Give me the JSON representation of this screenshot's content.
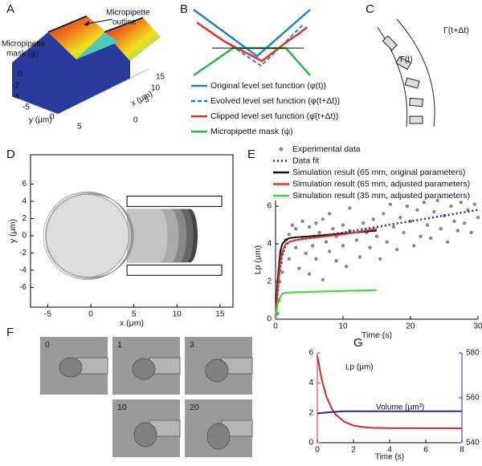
{
  "panels": {
    "A": {
      "label": "A",
      "annotations": [
        "Micropipette",
        "outline",
        "Micropipette",
        "mask (ψ)"
      ],
      "zticks": [
        0,
        -2,
        -4
      ],
      "yticks": [
        -5,
        0,
        5
      ],
      "xticks": [
        0,
        5,
        10,
        15
      ],
      "ylabel": "y (μm)",
      "xlabel": "x (μm)"
    },
    "B": {
      "label": "B",
      "legend": [
        {
          "name": "Original level set function (φ(t))",
          "color": "#2a7fc9",
          "dash": false
        },
        {
          "name": "Evolved level set function (φ(t+Δt))",
          "color": "#2a7fc9",
          "dash": true
        },
        {
          "name": "Clipped level set function (φ̄(t+Δt))",
          "color": "#e8312b",
          "dash": false
        },
        {
          "name": "Micropipette mask (ψ)",
          "color": "#2bb24c",
          "dash": false
        }
      ]
    },
    "C": {
      "label": "C",
      "outer": "Γ(t+Δt)",
      "inner": "Γ(t)"
    },
    "F": {
      "label": "F",
      "frames": [
        0,
        1,
        3,
        10,
        20
      ]
    }
  },
  "chart_data": [
    {
      "type": "diagram",
      "panel": "D",
      "xlabel": "x (μm)",
      "ylabel": "y (μm)",
      "xlim": [
        -7,
        16.5
      ],
      "ylim": [
        -8.3,
        9.4
      ],
      "xticks": [
        -5,
        0,
        5,
        10,
        15
      ],
      "yticks": [
        -6,
        -4,
        -2,
        0,
        2,
        4,
        6
      ]
    },
    {
      "type": "line",
      "panel": "E",
      "xlabel": "Time (s)",
      "ylabel": "Lp (μm)",
      "xlim": [
        0,
        30
      ],
      "ylim": [
        0,
        6.3
      ],
      "xticks": [
        0,
        10,
        20,
        30
      ],
      "yticks": [
        0,
        2,
        4,
        6
      ],
      "series": [
        {
          "name": "Experimental data",
          "color": "#888888",
          "style": "points",
          "x": [
            0.3,
            0.5,
            0.6,
            0.8,
            1,
            1,
            1.5,
            2,
            2,
            2.5,
            3,
            3,
            3.5,
            4,
            4,
            4.5,
            5,
            5,
            5.5,
            6,
            6,
            6.5,
            7,
            7,
            7.5,
            8,
            8,
            8.5,
            9,
            9,
            10,
            10,
            10.5,
            11,
            11,
            12,
            12.5,
            13,
            13.5,
            14,
            14.5,
            15,
            15.5,
            16,
            16.5,
            17,
            17.5,
            18,
            18.5,
            19,
            19.5,
            20,
            20.5,
            21,
            21.5,
            22,
            22.5,
            23,
            23.5,
            24,
            24.5,
            25,
            25.5,
            26,
            26.5,
            27,
            27.5,
            28,
            28.5,
            29,
            29.5,
            30
          ],
          "values": [
            0.3,
            1,
            2,
            3,
            3.5,
            2.5,
            4.2,
            3.2,
            4.5,
            5,
            3.8,
            4.8,
            2.7,
            4.3,
            5.2,
            3.5,
            4.9,
            2.4,
            3.9,
            5.1,
            3.2,
            4.6,
            2.1,
            5.3,
            4.1,
            3.6,
            5.6,
            4.8,
            3.1,
            4.4,
            5,
            3.9,
            2.8,
            4.7,
            5.9,
            4.2,
            3.3,
            5.1,
            4.6,
            3.8,
            5.3,
            4.4,
            3.2,
            5.6,
            4.1,
            6.1,
            4.9,
            3.7,
            5.4,
            4.6,
            6,
            5.2,
            3.9,
            5.8,
            4.4,
            6.2,
            5,
            4.3,
            5.7,
            6.3,
            4.8,
            5.5,
            4.1,
            6,
            5.2,
            4.7,
            6.2,
            5.1,
            5.8,
            4.6,
            6.1,
            5.4
          ]
        },
        {
          "name": "Data fit",
          "color": "#2222cc",
          "style": "dotted",
          "x": [
            0,
            0.5,
            1,
            1.5,
            2,
            3,
            5,
            10,
            15,
            20,
            25,
            30
          ],
          "values": [
            0,
            2.2,
            3.4,
            3.9,
            4.1,
            4.2,
            4.3,
            4.6,
            4.9,
            5.2,
            5.5,
            5.8
          ]
        },
        {
          "name": "Simulation result (65 mm, original parameters)",
          "color": "#111111",
          "style": "solid",
          "x": [
            0,
            0.3,
            0.7,
            1,
            1.5,
            2,
            3,
            5,
            10,
            15
          ],
          "values": [
            0,
            2,
            3.6,
            4,
            4.2,
            4.3,
            4.35,
            4.4,
            4.55,
            4.7
          ]
        },
        {
          "name": "Simulation result (65 mm, adjusted parameters)",
          "color": "#e8312b",
          "style": "solid",
          "x": [
            0,
            0.3,
            0.7,
            1,
            1.5,
            2,
            3,
            5,
            10,
            15
          ],
          "values": [
            0,
            1.5,
            3,
            3.6,
            4,
            4.1,
            4.2,
            4.3,
            4.5,
            4.8
          ]
        },
        {
          "name": "Simulation result (35 mm, adjusted parameters)",
          "color": "#33dd33",
          "style": "solid",
          "x": [
            0,
            0.3,
            0.7,
            1,
            1.5,
            2,
            5,
            10,
            15
          ],
          "values": [
            0,
            0.8,
            1.2,
            1.35,
            1.4,
            1.42,
            1.45,
            1.5,
            1.55
          ]
        }
      ]
    },
    {
      "type": "line",
      "panel": "G",
      "xlabel": "Time (s)",
      "xlim": [
        0,
        8
      ],
      "ylim": [
        0,
        6
      ],
      "y2lim": [
        540,
        580
      ],
      "xticks": [
        0,
        2,
        4,
        6,
        8
      ],
      "yticks": [
        0,
        2,
        4,
        6
      ],
      "y2ticks": [
        540,
        560,
        580
      ],
      "series": [
        {
          "name": "Lp (μm)",
          "color": "#d42a2a",
          "style": "solid",
          "x": [
            0,
            0.25,
            0.5,
            0.75,
            1,
            1.5,
            2,
            2.5,
            3,
            4,
            6,
            8
          ],
          "values": [
            5.8,
            4.2,
            3.1,
            2.4,
            1.9,
            1.4,
            1.15,
            1.05,
            1,
            0.98,
            0.97,
            0.97
          ]
        },
        {
          "name": "Volume (μm³)",
          "color": "#2a2a99",
          "style": "solid",
          "axis": "y2",
          "x": [
            0,
            0.5,
            1,
            1.5,
            2,
            3,
            4,
            6,
            8
          ],
          "values": [
            553,
            553.5,
            553.8,
            554,
            554,
            554,
            554,
            554,
            554
          ]
        }
      ]
    }
  ]
}
